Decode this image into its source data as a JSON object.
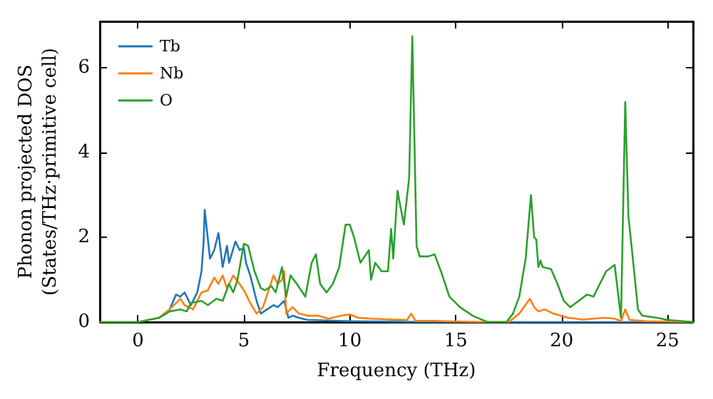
{
  "chart_data": {
    "type": "line",
    "xlabel": "Frequency (THz)",
    "ylabel": "Phonon projected DOS\n(States/THz·primitive cell)",
    "xlim": [
      -1.8,
      26.2
    ],
    "xticks": [
      0,
      5,
      10,
      15,
      20,
      25
    ],
    "ylim": [
      0,
      7.1
    ],
    "yticks": [
      0,
      2,
      4,
      6
    ],
    "grid": false,
    "legend": "top left",
    "marker": "none",
    "line_style": "solid",
    "series": [
      {
        "name": "Tb",
        "color": "#1f77b4",
        "x": [
          1,
          1.5,
          1.8,
          2,
          2.2,
          2.5,
          2.8,
          3,
          3.1,
          3.15,
          3.4,
          3.6,
          3.8,
          4,
          4.2,
          4.3,
          4.6,
          4.8,
          5,
          5.1,
          5.3,
          5.6,
          5.8,
          6.1,
          6.4,
          6.6,
          6.9,
          7.1,
          7.3,
          7.6,
          8,
          10,
          12,
          14,
          26.2
        ],
        "values": [
          0.1,
          0.3,
          0.65,
          0.6,
          0.7,
          0.4,
          0.7,
          1.2,
          1.9,
          2.65,
          1.5,
          1.7,
          2.1,
          1.3,
          1.8,
          1.4,
          1.9,
          1.7,
          1.75,
          1.4,
          1.1,
          0.5,
          0.2,
          0.3,
          0.4,
          0.35,
          0.5,
          0.1,
          0.15,
          0.1,
          0.05,
          0.02,
          0.01,
          0,
          0
        ]
      },
      {
        "name": "Nb",
        "color": "#ff7f0e",
        "x": [
          -1.8,
          0,
          1,
          1.5,
          2,
          2.2,
          2.6,
          3,
          3.3,
          3.6,
          3.8,
          4,
          4.2,
          4.5,
          4.8,
          5,
          5.3,
          5.6,
          5.9,
          6.2,
          6.4,
          6.6,
          6.8,
          6.9,
          7,
          7.3,
          7.6,
          8,
          8.5,
          9,
          9.6,
          10,
          10.4,
          11,
          12,
          12.7,
          12.9,
          13.1,
          14,
          16,
          17.5,
          18,
          18.5,
          18.7,
          18.9,
          19.2,
          19.6,
          20.3,
          21,
          22,
          22.5,
          22.8,
          23,
          23.2,
          24,
          26.2
        ],
        "values": [
          0,
          0,
          0.1,
          0.3,
          0.55,
          0.4,
          0.3,
          0.7,
          0.75,
          1.05,
          0.9,
          1.1,
          0.8,
          1.1,
          0.9,
          0.75,
          0.45,
          0.2,
          0.35,
          0.8,
          1.1,
          0.9,
          1.0,
          1.2,
          0.2,
          0.35,
          0.2,
          0.15,
          0.15,
          0.08,
          0.15,
          0.18,
          0.1,
          0.08,
          0.06,
          0.05,
          0.2,
          0.03,
          0.03,
          0,
          0,
          0.2,
          0.55,
          0.35,
          0.25,
          0.3,
          0.2,
          0.1,
          0.06,
          0.1,
          0.08,
          0.02,
          0.3,
          0.05,
          0.02,
          0
        ]
      },
      {
        "name": "O",
        "color": "#2ca02c",
        "x": [
          -1.8,
          0,
          1,
          1.5,
          2,
          2.3,
          2.5,
          3,
          3.3,
          3.7,
          4,
          4.3,
          4.5,
          4.7,
          5,
          5.2,
          5.5,
          5.8,
          6,
          6.3,
          6.5,
          6.8,
          7,
          7.2,
          7.5,
          7.9,
          8.2,
          8.4,
          8.6,
          8.9,
          9.2,
          9.5,
          9.8,
          10,
          10.2,
          10.5,
          10.9,
          11,
          11.2,
          11.5,
          11.8,
          11.95,
          12.05,
          12.25,
          12.4,
          12.55,
          12.8,
          12.95,
          13.15,
          13.3,
          13.7,
          14,
          14.3,
          14.7,
          15.2,
          15.8,
          16.5,
          17.4,
          17.7,
          18,
          18.3,
          18.55,
          18.7,
          18.8,
          18.9,
          19,
          19.1,
          19.5,
          19.8,
          20.1,
          20.4,
          20.8,
          21.2,
          21.5,
          21.8,
          22.1,
          22.5,
          22.8,
          23,
          23.15,
          23.4,
          23.6,
          23.8,
          24.5,
          25,
          26.2
        ],
        "values": [
          0,
          0,
          0.1,
          0.25,
          0.3,
          0.25,
          0.45,
          0.5,
          0.4,
          0.55,
          0.5,
          0.9,
          0.7,
          1.0,
          1.85,
          1.8,
          1.2,
          0.8,
          0.75,
          0.85,
          0.7,
          1.3,
          0.6,
          1.1,
          0.9,
          0.6,
          1.4,
          1.6,
          0.9,
          0.7,
          0.9,
          1.3,
          2.3,
          2.3,
          2.0,
          1.4,
          1.7,
          1.0,
          1.4,
          1.2,
          1.2,
          2.2,
          1.5,
          3.1,
          2.7,
          2.3,
          3.4,
          6.75,
          1.8,
          1.55,
          1.55,
          1.6,
          1.2,
          0.6,
          0.35,
          0.15,
          0,
          0,
          0.2,
          0.6,
          1.5,
          3.0,
          2.0,
          1.95,
          1.3,
          1.45,
          1.3,
          1.25,
          0.9,
          0.5,
          0.35,
          0.5,
          0.65,
          0.6,
          0.9,
          1.2,
          1.35,
          0.1,
          5.2,
          2.5,
          1.3,
          0.3,
          0.15,
          0.1,
          0.05,
          0
        ]
      }
    ]
  }
}
